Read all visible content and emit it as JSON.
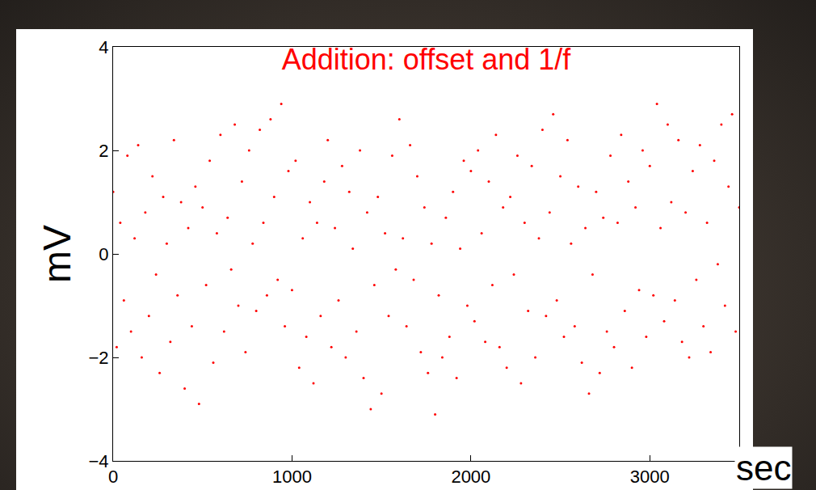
{
  "chart_data": {
    "type": "scatter",
    "title": "Addition: offset and 1/f",
    "x_label": "sec",
    "y_label": "mV",
    "color": "#ff0000",
    "marker": "dot",
    "grid": false,
    "xlim": [
      0,
      3500
    ],
    "ylim": [
      -4,
      4
    ],
    "xticks": [
      0,
      1000,
      2000,
      3000
    ],
    "yticks": [
      {
        "value": -4,
        "label": "−4"
      },
      {
        "value": -2,
        "label": "−2"
      },
      0,
      2,
      4
    ],
    "x": [
      0,
      20,
      40,
      60,
      80,
      100,
      120,
      140,
      160,
      180,
      200,
      220,
      240,
      260,
      280,
      300,
      320,
      340,
      360,
      380,
      400,
      420,
      440,
      460,
      480,
      500,
      520,
      540,
      560,
      580,
      600,
      620,
      640,
      660,
      680,
      700,
      720,
      740,
      760,
      780,
      800,
      820,
      840,
      860,
      880,
      900,
      920,
      940,
      960,
      980,
      1000,
      1020,
      1040,
      1060,
      1080,
      1100,
      1120,
      1140,
      1160,
      1180,
      1200,
      1220,
      1240,
      1260,
      1280,
      1300,
      1320,
      1340,
      1360,
      1380,
      1400,
      1420,
      1440,
      1460,
      1480,
      1500,
      1520,
      1540,
      1560,
      1580,
      1600,
      1620,
      1640,
      1660,
      1680,
      1700,
      1720,
      1740,
      1760,
      1780,
      1800,
      1820,
      1840,
      1860,
      1880,
      1900,
      1920,
      1940,
      1960,
      1980,
      2000,
      2020,
      2040,
      2060,
      2080,
      2100,
      2120,
      2140,
      2160,
      2180,
      2200,
      2220,
      2240,
      2260,
      2280,
      2300,
      2320,
      2340,
      2360,
      2380,
      2400,
      2420,
      2440,
      2460,
      2480,
      2500,
      2520,
      2540,
      2560,
      2580,
      2600,
      2620,
      2640,
      2660,
      2680,
      2700,
      2720,
      2740,
      2760,
      2780,
      2800,
      2820,
      2840,
      2860,
      2880,
      2900,
      2920,
      2940,
      2960,
      2980,
      3000,
      3020,
      3040,
      3060,
      3080,
      3100,
      3120,
      3140,
      3160,
      3180,
      3200,
      3220,
      3240,
      3260,
      3280,
      3300,
      3320,
      3340,
      3360,
      3380,
      3400,
      3420,
      3440,
      3460,
      3480,
      3500
    ],
    "values": [
      1.2,
      -1.8,
      0.6,
      -0.9,
      1.9,
      -1.5,
      0.3,
      2.1,
      -2.0,
      0.8,
      -1.2,
      1.5,
      -0.4,
      -2.3,
      1.1,
      0.2,
      -1.7,
      2.2,
      -0.8,
      1.0,
      -2.6,
      0.5,
      -1.4,
      1.3,
      -2.9,
      0.9,
      -0.6,
      1.8,
      -2.1,
      0.4,
      2.3,
      -1.5,
      0.7,
      -0.3,
      2.5,
      -1.0,
      1.4,
      -1.9,
      2.0,
      0.2,
      -1.1,
      2.4,
      0.6,
      -0.8,
      2.6,
      1.1,
      -0.5,
      2.9,
      -1.4,
      1.6,
      -0.7,
      1.8,
      -2.2,
      0.3,
      -1.6,
      1.0,
      -2.5,
      0.6,
      -1.2,
      1.4,
      2.2,
      -1.8,
      0.5,
      -0.9,
      1.7,
      -2.0,
      1.2,
      0.1,
      -1.5,
      2.0,
      -2.4,
      0.8,
      -3.0,
      -0.6,
      1.1,
      -2.7,
      0.4,
      -1.2,
      1.9,
      -0.3,
      2.6,
      0.3,
      -1.4,
      2.1,
      -0.5,
      1.5,
      -1.9,
      0.9,
      -2.3,
      0.2,
      -3.1,
      -0.8,
      -2.0,
      0.7,
      -1.6,
      1.2,
      -2.4,
      0.1,
      1.8,
      -1.0,
      1.6,
      -1.3,
      2.0,
      0.4,
      -1.7,
      1.4,
      -0.6,
      2.3,
      -1.8,
      0.9,
      -2.2,
      1.1,
      -0.4,
      1.9,
      -2.5,
      0.6,
      -1.1,
      1.7,
      -2.0,
      0.3,
      2.4,
      -1.2,
      0.8,
      2.7,
      -0.9,
      1.5,
      -1.6,
      2.2,
      0.2,
      -1.4,
      1.3,
      -2.1,
      0.5,
      -2.7,
      -0.4,
      1.2,
      -2.3,
      0.7,
      -1.5,
      1.9,
      -1.8,
      0.6,
      2.3,
      -1.1,
      1.4,
      -2.2,
      0.9,
      -0.7,
      2.0,
      -1.6,
      1.7,
      -0.8,
      2.9,
      0.5,
      -1.3,
      2.5,
      1.0,
      -0.9,
      2.2,
      -1.7,
      0.8,
      -2.0,
      1.6,
      -0.5,
      2.1,
      -1.4,
      0.6,
      -1.9,
      1.8,
      -0.2,
      2.5,
      -1.0,
      1.3,
      2.7,
      -1.5,
      0.9
    ]
  }
}
